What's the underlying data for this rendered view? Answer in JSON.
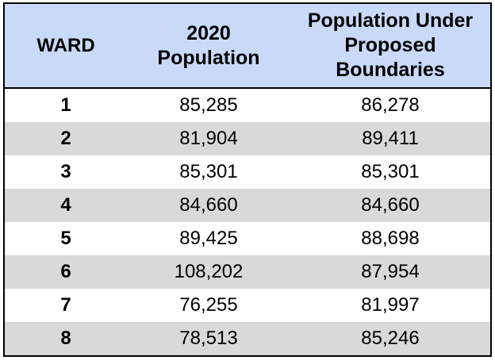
{
  "table": {
    "headers": {
      "ward": "WARD",
      "population_2020": "2020\nPopulation",
      "population_proposed": "Population Under\nProposed\nBoundaries"
    },
    "rows": [
      {
        "ward": "1",
        "population_2020": "85,285",
        "population_proposed": "86,278"
      },
      {
        "ward": "2",
        "population_2020": "81,904",
        "population_proposed": "89,411"
      },
      {
        "ward": "3",
        "population_2020": "85,301",
        "population_proposed": "85,301"
      },
      {
        "ward": "4",
        "population_2020": "84,660",
        "population_proposed": "84,660"
      },
      {
        "ward": "5",
        "population_2020": "89,425",
        "population_proposed": "88,698"
      },
      {
        "ward": "6",
        "population_2020": "108,202",
        "population_proposed": "87,954"
      },
      {
        "ward": "7",
        "population_2020": "76,255",
        "population_proposed": "81,997"
      },
      {
        "ward": "8",
        "population_2020": "78,513",
        "population_proposed": "85,246"
      }
    ]
  },
  "colors": {
    "header_background": "#c9daf8",
    "striped_row_background": "#d9d9d9",
    "border": "#000000"
  }
}
